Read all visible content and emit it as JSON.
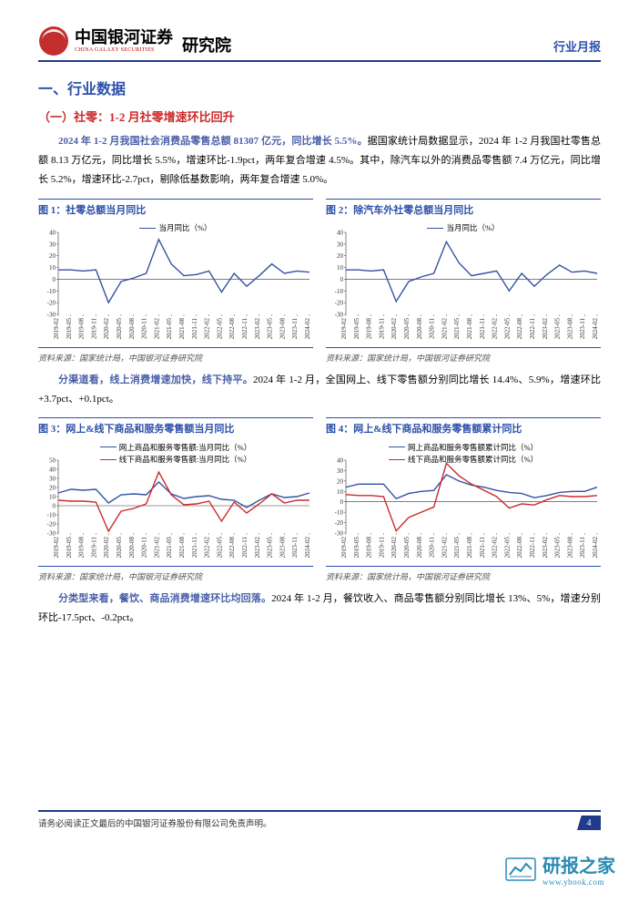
{
  "header": {
    "company_cn": "中国银河证券",
    "company_en": "CHINA GALAXY SECURITIES",
    "institute": "研究院",
    "doc_type": "行业月报",
    "logo_colors": {
      "red": "#c32f2f",
      "blue": "#263a8a"
    }
  },
  "section_h1": "一、行业数据",
  "section_h2": "（一）社零：1-2 月社零增速环比回升",
  "para1_lead": "2024 年 1-2 月我国社会消费品零售总额 81307 亿元，同比增长 5.5%。",
  "para1_body": "据国家统计局数据显示，2024 年 1-2 月我国社零售总额 8.13 万亿元，同比增长 5.5%，增速环比-1.9pct，两年复合增速 4.5%。其中，除汽车以外的消费品零售额 7.4 万亿元，同比增长 5.2%，增速环比-2.7pct，剔除低基数影响，两年复合增速 5.0%。",
  "para2_lead": "分渠道看，线上消费增速加快，线下持平。",
  "para2_body": "2024 年 1-2 月，全国网上、线下零售额分别同比增长 14.4%、5.9%，增速环比+3.7pct、+0.1pct。",
  "para3_lead": "分类型来看，餐饮、商品消费增速环比均回落。",
  "para3_body": "2024 年 1-2 月，餐饮收入、商品零售额分别同比增长 13%、5%，增速分别环比-17.5pct、-0.2pct。",
  "source_text": "资料来源：国家统计局，中国银河证券研究院",
  "xaxis_labels": [
    "2019-02",
    "2019-05",
    "2019-08",
    "2019-11",
    "2020-02",
    "2020-05",
    "2020-08",
    "2020-11",
    "2021-02",
    "2021-05",
    "2021-08",
    "2021-11",
    "2022-02",
    "2022-05",
    "2022-08",
    "2022-11",
    "2023-02",
    "2023-05",
    "2023-08",
    "2023-11",
    "2024-02"
  ],
  "fig1": {
    "title": "图 1：社零总额当月同比",
    "type": "line",
    "legend": [
      {
        "label": "当月同比（%）",
        "color": "#3452a5"
      }
    ],
    "series": [
      {
        "color": "#3452a5",
        "width": 1.4,
        "data": [
          8,
          8,
          7,
          8,
          -20,
          -2,
          1,
          5,
          34,
          13,
          3,
          4,
          7,
          -11,
          5,
          -6,
          3,
          13,
          5,
          7,
          6
        ]
      }
    ],
    "yticks": [
      -30,
      -20,
      -10,
      0,
      10,
      20,
      30,
      40
    ],
    "ylim": [
      -30,
      40
    ],
    "axis_color": "#888888",
    "grid_color": "#dddddd",
    "tick_fontsize": 7
  },
  "fig2": {
    "title": "图 2：除汽车外社零总额当月同比",
    "type": "line",
    "legend": [
      {
        "label": "当月同比（%）",
        "color": "#3452a5"
      }
    ],
    "series": [
      {
        "color": "#3452a5",
        "width": 1.4,
        "data": [
          8,
          8,
          7,
          8,
          -19,
          -2,
          2,
          5,
          32,
          14,
          3,
          5,
          7,
          -10,
          5,
          -6,
          4,
          12,
          6,
          7,
          5
        ]
      }
    ],
    "yticks": [
      -30,
      -20,
      -10,
      0,
      10,
      20,
      30,
      40
    ],
    "ylim": [
      -30,
      40
    ],
    "axis_color": "#888888",
    "grid_color": "#dddddd",
    "tick_fontsize": 7
  },
  "fig3": {
    "title": "图 3：网上&线下商品和服务零售额当月同比",
    "type": "line",
    "legend": [
      {
        "label": "网上商品和服务零售额:当月同比（%）",
        "color": "#3452a5"
      },
      {
        "label": "线下商品和服务零售额:当月同比（%）",
        "color": "#cc2a2a"
      }
    ],
    "series": [
      {
        "color": "#3452a5",
        "width": 1.4,
        "data": [
          14,
          18,
          17,
          18,
          3,
          12,
          13,
          12,
          26,
          13,
          8,
          10,
          11,
          7,
          6,
          -2,
          6,
          13,
          9,
          10,
          14
        ]
      },
      {
        "color": "#cc2a2a",
        "width": 1.4,
        "data": [
          6,
          5,
          5,
          4,
          -28,
          -6,
          -3,
          2,
          37,
          12,
          1,
          2,
          5,
          -17,
          4,
          -8,
          2,
          13,
          3,
          6,
          6
        ]
      }
    ],
    "yticks": [
      -30,
      -20,
      -10,
      0,
      10,
      20,
      30,
      40,
      50
    ],
    "ylim": [
      -30,
      50
    ],
    "axis_color": "#888888",
    "grid_color": "#dddddd",
    "tick_fontsize": 7
  },
  "fig4": {
    "title": "图 4：网上&线下商品和服务零售额累计同比",
    "type": "line",
    "legend": [
      {
        "label": "网上商品和服务零售额累计同比（%）",
        "color": "#3452a5"
      },
      {
        "label": "线下商品和服务零售额累计同比（%）",
        "color": "#cc2a2a"
      }
    ],
    "series": [
      {
        "color": "#3452a5",
        "width": 1.4,
        "data": [
          14,
          17,
          17,
          17,
          3,
          8,
          10,
          11,
          26,
          20,
          16,
          14,
          11,
          9,
          8,
          4,
          6,
          9,
          10,
          10,
          14
        ]
      },
      {
        "color": "#cc2a2a",
        "width": 1.4,
        "data": [
          7,
          6,
          6,
          5,
          -28,
          -15,
          -10,
          -5,
          37,
          25,
          17,
          11,
          5,
          -6,
          -2,
          -3,
          2,
          6,
          5,
          5,
          6
        ]
      }
    ],
    "yticks": [
      -30,
      -20,
      -10,
      0,
      10,
      20,
      30,
      40
    ],
    "ylim": [
      -30,
      40
    ],
    "axis_color": "#888888",
    "grid_color": "#dddddd",
    "tick_fontsize": 7
  },
  "footer": {
    "disclaimer": "请务必阅读正文最后的中国银河证券股份有限公司免责声明。",
    "page": "4"
  },
  "watermark": {
    "text_cn": "研报之家",
    "text_en": "www.ybook.com",
    "color": "#2b8ab5"
  }
}
